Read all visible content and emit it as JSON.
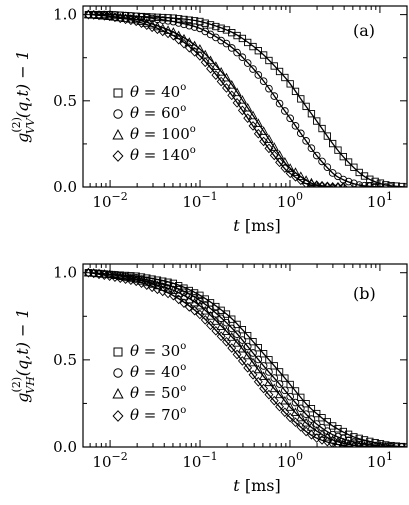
{
  "chart_data": [
    {
      "panel": "(a)",
      "type": "scatter",
      "xlabel": "t [ms]",
      "ylabel": "g_{VV}^{(2)}(q,t) − 1",
      "xscale": "log",
      "xlim": [
        0.005,
        20
      ],
      "ylim": [
        0.0,
        1.05
      ],
      "x_ticks": [
        0.01,
        0.1,
        1,
        10
      ],
      "x_tick_labels": [
        "10−2",
        "10−1",
        "100",
        "101"
      ],
      "y_ticks": [
        0.0,
        0.5,
        1.0
      ],
      "y_tick_labels": [
        "0.0",
        "0.5",
        "1.0"
      ],
      "grid": false,
      "legend_position": "left",
      "series": [
        {
          "name": "θ = 40°",
          "marker": "square",
          "points": [
            [
              0.006,
              1.0
            ],
            [
              0.01,
              1.0
            ],
            [
              0.02,
              0.99
            ],
            [
              0.05,
              0.98
            ],
            [
              0.1,
              0.96
            ],
            [
              0.2,
              0.91
            ],
            [
              0.3,
              0.86
            ],
            [
              0.5,
              0.77
            ],
            [
              0.8,
              0.66
            ],
            [
              1.0,
              0.6
            ],
            [
              1.5,
              0.47
            ],
            [
              2.0,
              0.38
            ],
            [
              3.0,
              0.25
            ],
            [
              4.0,
              0.17
            ],
            [
              6.0,
              0.08
            ],
            [
              8.0,
              0.04
            ],
            [
              12.0,
              0.01
            ],
            [
              20.0,
              0.0
            ]
          ]
        },
        {
          "name": "θ = 60°",
          "marker": "circle",
          "points": [
            [
              0.006,
              1.0
            ],
            [
              0.01,
              1.0
            ],
            [
              0.02,
              0.99
            ],
            [
              0.05,
              0.96
            ],
            [
              0.1,
              0.92
            ],
            [
              0.2,
              0.83
            ],
            [
              0.3,
              0.75
            ],
            [
              0.5,
              0.62
            ],
            [
              0.8,
              0.47
            ],
            [
              1.0,
              0.4
            ],
            [
              1.5,
              0.27
            ],
            [
              2.0,
              0.18
            ],
            [
              3.0,
              0.08
            ],
            [
              4.0,
              0.04
            ],
            [
              6.0,
              0.01
            ],
            [
              10.0,
              0.0
            ]
          ]
        },
        {
          "name": "θ = 100°",
          "marker": "triangle",
          "points": [
            [
              0.006,
              1.0
            ],
            [
              0.01,
              0.99
            ],
            [
              0.02,
              0.97
            ],
            [
              0.05,
              0.9
            ],
            [
              0.1,
              0.8
            ],
            [
              0.2,
              0.63
            ],
            [
              0.3,
              0.5
            ],
            [
              0.5,
              0.33
            ],
            [
              0.8,
              0.17
            ],
            [
              1.0,
              0.11
            ],
            [
              1.5,
              0.04
            ],
            [
              2.0,
              0.01
            ],
            [
              3.0,
              0.0
            ]
          ]
        },
        {
          "name": "θ = 140°",
          "marker": "diamond",
          "points": [
            [
              0.006,
              1.0
            ],
            [
              0.01,
              0.99
            ],
            [
              0.02,
              0.96
            ],
            [
              0.05,
              0.88
            ],
            [
              0.1,
              0.76
            ],
            [
              0.2,
              0.57
            ],
            [
              0.3,
              0.44
            ],
            [
              0.5,
              0.27
            ],
            [
              0.8,
              0.13
            ],
            [
              1.0,
              0.08
            ],
            [
              1.5,
              0.02
            ],
            [
              2.0,
              0.01
            ],
            [
              3.0,
              0.0
            ]
          ]
        }
      ]
    },
    {
      "panel": "(b)",
      "type": "scatter",
      "xlabel": "t [ms]",
      "ylabel": "g_{VH}^{(2)}(q,t) − 1",
      "xscale": "log",
      "xlim": [
        0.005,
        20
      ],
      "ylim": [
        0.0,
        1.05
      ],
      "x_ticks": [
        0.01,
        0.1,
        1,
        10
      ],
      "x_tick_labels": [
        "10−2",
        "10−1",
        "100",
        "101"
      ],
      "y_ticks": [
        0.0,
        0.5,
        1.0
      ],
      "y_tick_labels": [
        "0.0",
        "0.5",
        "1.0"
      ],
      "grid": false,
      "legend_position": "left",
      "series": [
        {
          "name": "θ = 30°",
          "marker": "square",
          "points": [
            [
              0.006,
              1.0
            ],
            [
              0.01,
              0.99
            ],
            [
              0.02,
              0.98
            ],
            [
              0.05,
              0.94
            ],
            [
              0.1,
              0.87
            ],
            [
              0.2,
              0.76
            ],
            [
              0.3,
              0.67
            ],
            [
              0.5,
              0.54
            ],
            [
              0.8,
              0.42
            ],
            [
              1.0,
              0.36
            ],
            [
              1.5,
              0.25
            ],
            [
              2.0,
              0.19
            ],
            [
              3.0,
              0.12
            ],
            [
              5.0,
              0.06
            ],
            [
              8.0,
              0.03
            ],
            [
              12.0,
              0.01
            ],
            [
              20.0,
              0.0
            ]
          ]
        },
        {
          "name": "θ = 40°",
          "marker": "circle",
          "points": [
            [
              0.006,
              1.0
            ],
            [
              0.01,
              0.99
            ],
            [
              0.02,
              0.97
            ],
            [
              0.05,
              0.92
            ],
            [
              0.1,
              0.84
            ],
            [
              0.2,
              0.71
            ],
            [
              0.3,
              0.61
            ],
            [
              0.5,
              0.47
            ],
            [
              0.8,
              0.35
            ],
            [
              1.0,
              0.29
            ],
            [
              1.5,
              0.19
            ],
            [
              2.0,
              0.13
            ],
            [
              3.0,
              0.07
            ],
            [
              5.0,
              0.03
            ],
            [
              8.0,
              0.01
            ],
            [
              15.0,
              0.0
            ]
          ]
        },
        {
          "name": "θ = 50°",
          "marker": "triangle",
          "points": [
            [
              0.006,
              1.0
            ],
            [
              0.01,
              0.99
            ],
            [
              0.02,
              0.96
            ],
            [
              0.05,
              0.9
            ],
            [
              0.1,
              0.81
            ],
            [
              0.2,
              0.66
            ],
            [
              0.3,
              0.56
            ],
            [
              0.5,
              0.41
            ],
            [
              0.8,
              0.29
            ],
            [
              1.0,
              0.23
            ],
            [
              1.5,
              0.14
            ],
            [
              2.0,
              0.09
            ],
            [
              3.0,
              0.04
            ],
            [
              5.0,
              0.01
            ],
            [
              10.0,
              0.0
            ]
          ]
        },
        {
          "name": "θ = 70°",
          "marker": "diamond",
          "points": [
            [
              0.006,
              1.0
            ],
            [
              0.01,
              0.98
            ],
            [
              0.02,
              0.95
            ],
            [
              0.05,
              0.87
            ],
            [
              0.1,
              0.76
            ],
            [
              0.2,
              0.6
            ],
            [
              0.3,
              0.49
            ],
            [
              0.5,
              0.34
            ],
            [
              0.8,
              0.22
            ],
            [
              1.0,
              0.17
            ],
            [
              1.5,
              0.09
            ],
            [
              2.0,
              0.05
            ],
            [
              3.0,
              0.02
            ],
            [
              5.0,
              0.0
            ]
          ]
        }
      ]
    }
  ]
}
